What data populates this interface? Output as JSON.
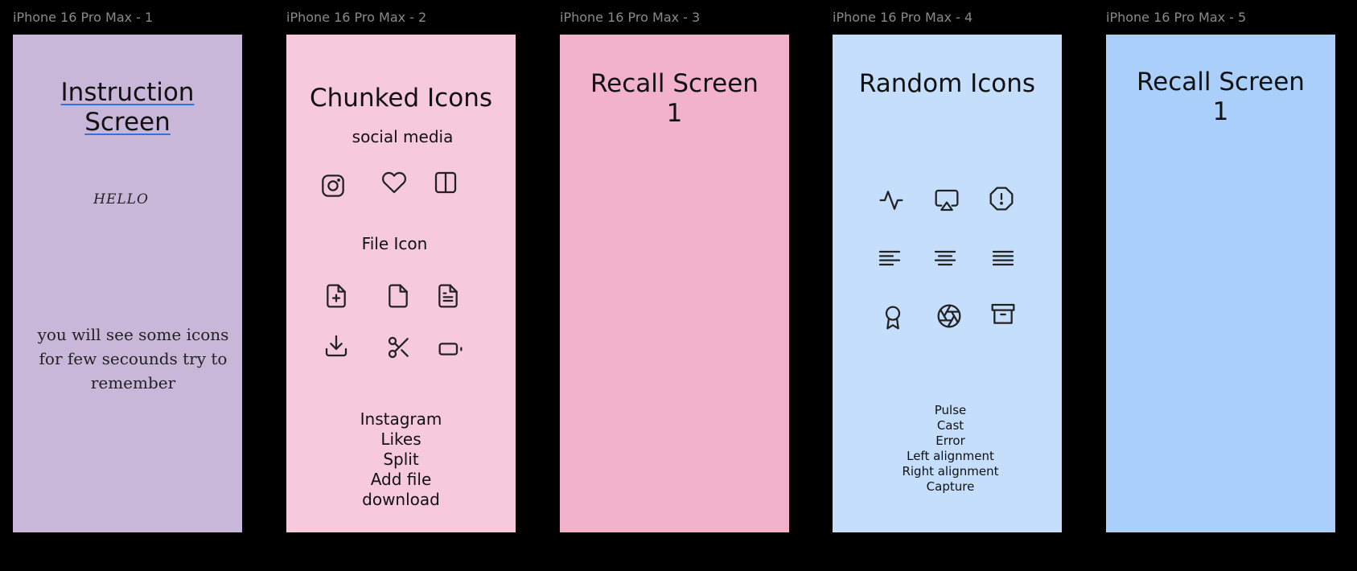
{
  "frames": [
    {
      "label": "iPhone 16 Pro Max - 1",
      "title_line1": "Instruction",
      "title_line2": "Screen",
      "hello": "HELLO",
      "instruction_lines": [
        "you will see some icons",
        "for few secounds try to",
        "remember"
      ]
    },
    {
      "label": "iPhone 16 Pro Max - 2",
      "title": "Chunked Icons",
      "group1": "social media",
      "group2": "File Icon",
      "icons": [
        "instagram-icon",
        "heart-icon",
        "split-icon",
        "file-plus-icon",
        "file-icon",
        "file-text-icon",
        "download-icon",
        "scissors-icon",
        "battery-icon"
      ],
      "list": [
        "Instagram",
        "Likes",
        "Split",
        "Add file",
        "download"
      ]
    },
    {
      "label": "iPhone 16 Pro Max - 3",
      "title_line1": "Recall Screen",
      "title_line2": "1"
    },
    {
      "label": "iPhone 16 Pro Max - 4",
      "title": "Random Icons",
      "icons": [
        "pulse-icon",
        "cast-icon",
        "error-octagon-icon",
        "align-left-icon",
        "align-center-icon",
        "align-justify-icon",
        "award-icon",
        "aperture-icon",
        "archive-icon"
      ],
      "list": [
        "Pulse",
        "Cast",
        "Error",
        "Left alignment",
        "Right alignment",
        "Capture"
      ]
    },
    {
      "label": "iPhone 16 Pro Max - 5",
      "title_line1": "Recall Screen",
      "title_line2": "1"
    }
  ],
  "colors": {
    "background": "#000000",
    "frame1": "#c9b7da",
    "frame2": "#f6c9dc",
    "frame3": "#f2b2cb",
    "frame4": "#c4defc",
    "frame5": "#a9cffa",
    "underline": "#3a6fd8"
  }
}
